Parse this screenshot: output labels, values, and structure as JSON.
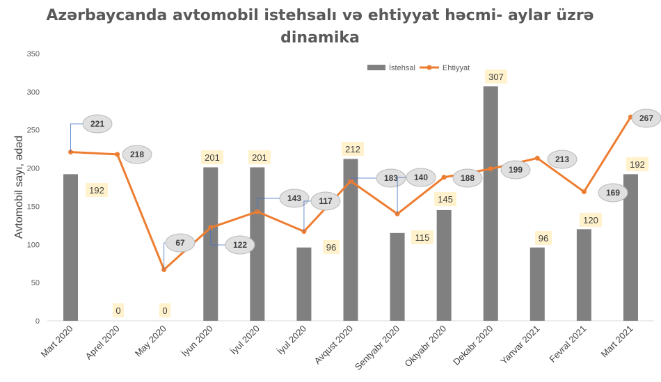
{
  "chart_data": {
    "type": "bar+line",
    "title_line1": "Azərbaycanda avtomobil istehsalı və ehtiyyat həcmi- aylar üzrə",
    "title_line2": "dinamika",
    "ylabel": "Avtomobil sayı, ədəd",
    "ylim": [
      0,
      350
    ],
    "yticks": [
      0,
      50,
      100,
      150,
      200,
      250,
      300,
      350
    ],
    "categories": [
      "Mart 2020",
      "Aprel 2020",
      "May 2020",
      "İyun 2020",
      "İyul 2020",
      "İyul 2020",
      "Avqust 2020",
      "Sentyabr 2020",
      "Oktyabr 2020",
      "Dekabr 2020",
      "Yanvar 2021",
      "Fevral 2021",
      "Mart 2021"
    ],
    "series": [
      {
        "name": "İstehsal",
        "type": "bar",
        "color": "#808080",
        "values": [
          192,
          0,
          0,
          201,
          201,
          96,
          212,
          115,
          145,
          307,
          96,
          120,
          192
        ]
      },
      {
        "name": "Ehtiyyat",
        "type": "line",
        "color": "#ED7D31",
        "values": [
          221,
          218,
          67,
          122,
          143,
          117,
          183,
          140,
          188,
          199,
          213,
          169,
          267
        ]
      }
    ],
    "legend_position": "top-right",
    "grid": false,
    "bar_label_color": "#FFF2CC",
    "line_label_color": "#E0E0E0"
  }
}
